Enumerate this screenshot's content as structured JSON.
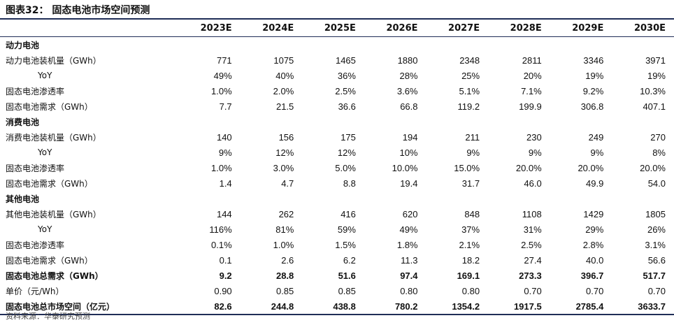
{
  "title": "图表32： 固态电池市场空间预测",
  "years": [
    "2023E",
    "2024E",
    "2025E",
    "2026E",
    "2027E",
    "2028E",
    "2029E",
    "2030E"
  ],
  "rows": [
    {
      "label": "动力电池",
      "type": "section",
      "values": []
    },
    {
      "label": "动力电池装机量（GWh）",
      "type": "data",
      "values": [
        "771",
        "1075",
        "1465",
        "1880",
        "2348",
        "2811",
        "3346",
        "3971"
      ]
    },
    {
      "label": "YoY",
      "type": "indent",
      "values": [
        "49%",
        "40%",
        "36%",
        "28%",
        "25%",
        "20%",
        "19%",
        "19%"
      ]
    },
    {
      "label": "固态电池渗透率",
      "type": "data",
      "values": [
        "1.0%",
        "2.0%",
        "2.5%",
        "3.6%",
        "5.1%",
        "7.1%",
        "9.2%",
        "10.3%"
      ]
    },
    {
      "label": "固态电池需求（GWh）",
      "type": "data",
      "values": [
        "7.7",
        "21.5",
        "36.6",
        "66.8",
        "119.2",
        "199.9",
        "306.8",
        "407.1"
      ]
    },
    {
      "label": "消费电池",
      "type": "section",
      "values": []
    },
    {
      "label": "消费电池装机量（GWh）",
      "type": "data",
      "values": [
        "140",
        "156",
        "175",
        "194",
        "211",
        "230",
        "249",
        "270"
      ]
    },
    {
      "label": "YoY",
      "type": "indent",
      "values": [
        "9%",
        "12%",
        "12%",
        "10%",
        "9%",
        "9%",
        "9%",
        "8%"
      ]
    },
    {
      "label": "固态电池渗透率",
      "type": "data",
      "values": [
        "1.0%",
        "3.0%",
        "5.0%",
        "10.0%",
        "15.0%",
        "20.0%",
        "20.0%",
        "20.0%"
      ]
    },
    {
      "label": "固态电池需求（GWh）",
      "type": "data",
      "values": [
        "1.4",
        "4.7",
        "8.8",
        "19.4",
        "31.7",
        "46.0",
        "49.9",
        "54.0"
      ]
    },
    {
      "label": "其他电池",
      "type": "section",
      "values": []
    },
    {
      "label": "其他电池装机量（GWh）",
      "type": "data",
      "values": [
        "144",
        "262",
        "416",
        "620",
        "848",
        "1108",
        "1429",
        "1805"
      ]
    },
    {
      "label": "YoY",
      "type": "indent",
      "values": [
        "116%",
        "81%",
        "59%",
        "49%",
        "37%",
        "31%",
        "29%",
        "26%"
      ]
    },
    {
      "label": "固态电池渗透率",
      "type": "data",
      "values": [
        "0.1%",
        "1.0%",
        "1.5%",
        "1.8%",
        "2.1%",
        "2.5%",
        "2.8%",
        "3.1%"
      ]
    },
    {
      "label": "固态电池需求（GWh）",
      "type": "data",
      "values": [
        "0.1",
        "2.6",
        "6.2",
        "11.3",
        "18.2",
        "27.4",
        "40.0",
        "56.6"
      ]
    },
    {
      "label": "固态电池总需求（GWh）",
      "type": "bold",
      "values": [
        "9.2",
        "28.8",
        "51.6",
        "97.4",
        "169.1",
        "273.3",
        "396.7",
        "517.7"
      ]
    },
    {
      "label": "单价（元/Wh）",
      "type": "data",
      "values": [
        "0.90",
        "0.85",
        "0.85",
        "0.80",
        "0.80",
        "0.70",
        "0.70",
        "0.70"
      ]
    },
    {
      "label": "固态电池总市场空间（亿元）",
      "type": "bold-last",
      "values": [
        "82.6",
        "244.8",
        "438.8",
        "780.2",
        "1354.2",
        "1917.5",
        "2785.4",
        "3633.7"
      ]
    }
  ],
  "source": "资料来源：华泰研究预测"
}
